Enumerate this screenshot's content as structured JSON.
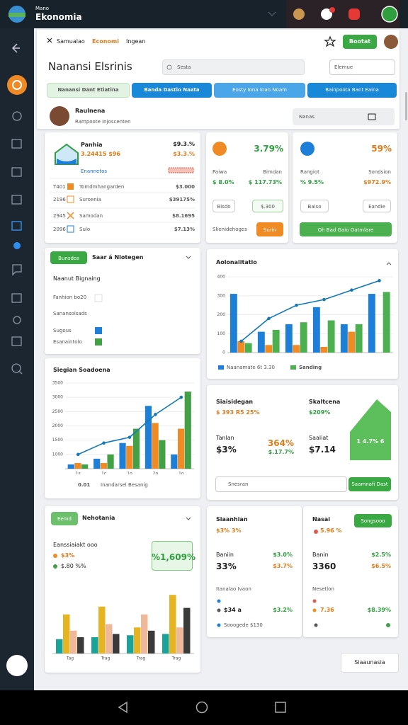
{
  "app": {
    "subtitle": "Mano",
    "title": "Ekonomia"
  },
  "header": {
    "crumbs": [
      "Samualao",
      "Economi",
      "Ingean"
    ],
    "action": "Bootat",
    "title": "Nanansi Elsrinis",
    "search": "Sesta",
    "select": "Elemue"
  },
  "tabs": [
    "Nanansi Dant Etiatina",
    "Banda Dastio Naata",
    "Eosty Iona Inan Noam",
    "Bainpoota Bant Eaina"
  ],
  "profile": {
    "name": "Raulnena",
    "role": "Rampoote Injoscenten",
    "select": "Nanas"
  },
  "card1": {
    "title": "Panhia",
    "value": "3.24415 $96",
    "stat1": "$9.3.%",
    "stat2": "$3.3.%",
    "note": "Enannetos",
    "rows": [
      {
        "id": "T401",
        "name": "Tomdmhangarden",
        "value": "$3.000"
      },
      {
        "id": "2196",
        "name": "Suroenia",
        "value": "$39175%"
      },
      {
        "id": "2945",
        "name": "Samodan",
        "value": "$8.1695"
      },
      {
        "id": "2096",
        "name": "Sulo",
        "value": "$7.13%"
      }
    ]
  },
  "card2": {
    "value": "3.79%",
    "labels": [
      "Paiwa",
      "Bimdan"
    ],
    "values": [
      "$ 8.0%",
      "$ 117.73%"
    ],
    "buttons": [
      "Bisdo",
      "$.300"
    ],
    "footer": "Slienidehoges",
    "action": "Surin"
  },
  "card3": {
    "value": "59%",
    "labels": [
      "Rangiot",
      "Sondsion"
    ],
    "values": [
      "% 9.5%",
      "$972.9%"
    ],
    "buttons": [
      "Baiso",
      "Eandie"
    ],
    "action": "Oh Bad Gaio Oatmlare"
  },
  "filter": {
    "button": "Bunsdos",
    "title": "Saar á Nlotegen",
    "heading": "Naanut Bignaing",
    "items": [
      "Fanhion bo20",
      "Sanansolsads"
    ],
    "legend": [
      "Sugous",
      "Esanaintolo"
    ]
  },
  "metrics": {
    "a_label": "Siaisidegan",
    "a_value": "$ 393 R5 25%",
    "b_label": "Skaltcena",
    "b_value": "$209%",
    "c_label": "Tanlan",
    "c_value": "$3%",
    "d_value": "364%",
    "d_sub": "$.17.7%",
    "e_label": "Saaliat",
    "e_value": "$7.14",
    "badge": "1 4.7% 6",
    "search": "Snesran",
    "action": "Saamnafi Dast"
  },
  "mix_card": {
    "button": "Eemd",
    "title": "Nehotania",
    "heading": "Eanssiaiakt ooo",
    "items": [
      "$3%",
      "$.80 %%"
    ],
    "badge": "%1,609%"
  },
  "stat_left": {
    "title": "Siaanhian",
    "value": "$3% 3%",
    "label": "Baniin",
    "big": "33%",
    "values": [
      "$3.0%",
      "$3.7%"
    ],
    "heading": "Itanalao Ivaon",
    "item": "$34 a",
    "item_value": "$3.2%",
    "foot": "Sooogede $130"
  },
  "stat_right": {
    "title": "Nasai",
    "action": "Songsooo",
    "value": "5.96 %",
    "label": "Banin",
    "big": "3360",
    "values": [
      "$2.5%",
      "$6.5%"
    ],
    "heading": "Nesetlon",
    "item": "7.36",
    "item_value": "$8.39%"
  },
  "footer_button": "Siaaunasia",
  "charts": {
    "sales": {
      "type": "bar",
      "title": "Siegian Soadoena",
      "footer": [
        "0.01",
        "Inandarsel Besanig"
      ],
      "categories": [
        "1s",
        "1c",
        "1o",
        "2o",
        "1o"
      ],
      "ylim": [
        500,
        3500
      ],
      "yticks": [
        1000,
        1500,
        2000,
        2500,
        3000,
        3500
      ],
      "series": [
        {
          "color": "#1e7fd8",
          "values": [
            650,
            850,
            1400,
            2700,
            1000
          ]
        },
        {
          "color": "#f08a24",
          "values": [
            700,
            700,
            1300,
            2100,
            1900
          ]
        },
        {
          "color": "#43a047",
          "values": [
            650,
            1000,
            1900,
            1500,
            3200
          ]
        },
        {
          "type": "line",
          "color": "#1479b8",
          "values": [
            1000,
            1400,
            1600,
            2400,
            3000
          ]
        }
      ]
    },
    "trend": {
      "type": "bar",
      "title": "Aolonalitatio",
      "categories": [
        null,
        null,
        null,
        null,
        null,
        null
      ],
      "ylim": [
        0,
        400
      ],
      "yticks": [
        0,
        100,
        200,
        300,
        400
      ],
      "series": [
        {
          "name": "Naanamate 6t 3.30",
          "color": "#1e7fd8",
          "values": [
            310,
            110,
            150,
            240,
            150,
            310
          ]
        },
        {
          "color": "#f08a24",
          "values": [
            60,
            40,
            40,
            30,
            110,
            0
          ]
        },
        {
          "name": "Sanding",
          "color": "#4caf50",
          "values": [
            50,
            120,
            160,
            170,
            150,
            320
          ]
        },
        {
          "type": "line",
          "color": "#1479b8",
          "values": [
            60,
            180,
            250,
            280,
            330,
            380
          ]
        }
      ]
    },
    "mix": {
      "type": "bar",
      "categories": [
        "Tag",
        "Trag",
        "Trag",
        "Trag"
      ],
      "ylim": [
        0,
        100
      ],
      "series": [
        {
          "color": "#1aa39a",
          "values": [
            22,
            25,
            28,
            30
          ]
        },
        {
          "color": "#e6b422",
          "values": [
            60,
            72,
            40,
            90
          ]
        },
        {
          "color": "#f0b89a",
          "values": [
            35,
            45,
            60,
            40
          ]
        },
        {
          "color": "#3a3a3a",
          "values": [
            25,
            30,
            35,
            70
          ]
        }
      ]
    }
  }
}
